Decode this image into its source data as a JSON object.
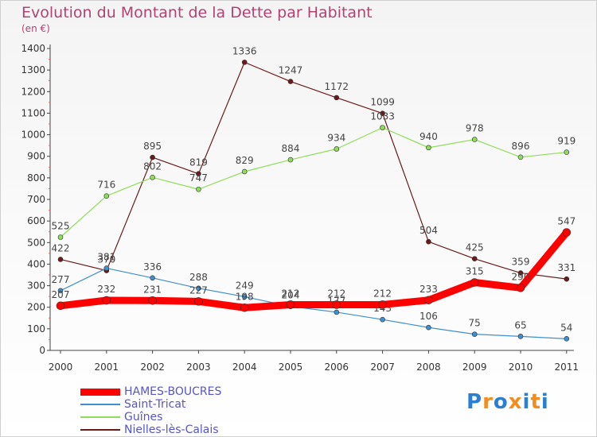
{
  "chart_data": {
    "type": "line",
    "title": "Evolution du Montant de la Dette par Habitant",
    "subtitle": "(en €)",
    "xlabel": "",
    "ylabel": "",
    "categories": [
      "2000",
      "2001",
      "2002",
      "2003",
      "2004",
      "2005",
      "2006",
      "2007",
      "2008",
      "2009",
      "2010",
      "2011"
    ],
    "ylim": [
      0,
      1400
    ],
    "yticks": [
      0,
      100,
      200,
      300,
      400,
      500,
      600,
      700,
      800,
      900,
      1000,
      1100,
      1200,
      1300,
      1400
    ],
    "grid": false,
    "legend_position": "bottom-left",
    "series": [
      {
        "name": "HAMES-BOUCRES",
        "color": "#ff0000",
        "values": [
          207,
          232,
          231,
          227,
          198,
          212,
          212,
          212,
          233,
          315,
          290,
          547
        ]
      },
      {
        "name": "Saint-Tricat",
        "color": "#3f8fcf",
        "values": [
          277,
          381,
          336,
          288,
          249,
          204,
          177,
          143,
          106,
          75,
          65,
          54
        ]
      },
      {
        "name": "Guînes",
        "color": "#8fdc5a",
        "values": [
          525,
          716,
          802,
          747,
          829,
          884,
          934,
          1033,
          940,
          978,
          896,
          919
        ]
      },
      {
        "name": "Nielles-lès-Calais",
        "color": "#6b1a1a",
        "values": [
          422,
          370,
          895,
          819,
          1336,
          1247,
          1172,
          1099,
          504,
          425,
          359,
          331
        ]
      }
    ]
  },
  "logo": {
    "text": "Proxiti",
    "colors": [
      "#2a7fd4",
      "#f28c1e",
      "#2a7fd4",
      "#f28c1e",
      "#2a7fd4",
      "#f28c1e",
      "#2a7fd4"
    ]
  }
}
